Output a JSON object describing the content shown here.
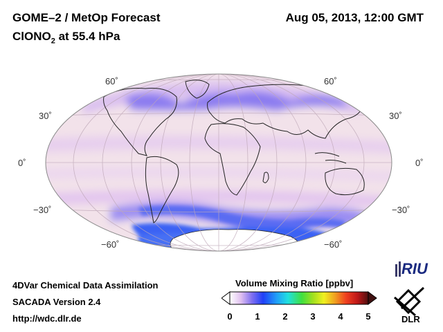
{
  "header": {
    "title": "GOME–2 / MetOp Forecast",
    "subtitle_main": "ClONO",
    "subtitle_sub": "2",
    "subtitle_rest": " at 55.4 hPa",
    "datetime": "Aug 05, 2013, 12:00 GMT"
  },
  "map": {
    "lat_labels": {
      "n60": "60˚",
      "n30": "30˚",
      "eq": "0˚",
      "s30": "−30˚",
      "s60": "−60˚"
    }
  },
  "footer": {
    "line1": "4DVar Chemical Data Assimilation",
    "line2": "SACADA Version 2.4",
    "line3": "http://wdc.dlr.de"
  },
  "colorbar": {
    "title": "Volume Mixing Ratio [ppbv]",
    "ticks": [
      "0",
      "1",
      "2",
      "3",
      "4",
      "5"
    ]
  },
  "logos": {
    "riu": "RIU",
    "dlr": "DLR"
  },
  "colors": {
    "ocean_base": "#f2e2ea",
    "band_mid": "#e4c8ee",
    "band_high": "#7c6cf0",
    "band_peak": "#3a5af2",
    "coast": "#222222"
  }
}
